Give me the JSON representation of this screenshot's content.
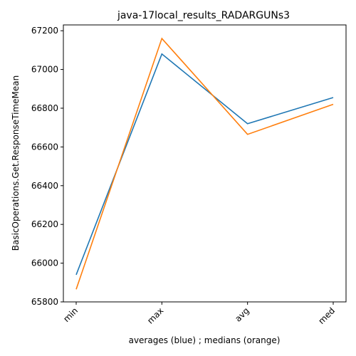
{
  "chart_data": {
    "type": "line",
    "title": "java-17local_results_RADARGUNs3",
    "xlabel": "averages (blue) ; medians (orange)",
    "ylabel": "BasicOperations.Get.ResponseTimeMean",
    "categories": [
      "min",
      "max",
      "avg",
      "med"
    ],
    "ylim": [
      65800,
      67230
    ],
    "yticks": [
      65800,
      66000,
      66200,
      66400,
      66600,
      66800,
      67000,
      67200
    ],
    "grid": false,
    "series": [
      {
        "name": "averages",
        "color": "#1f77b4",
        "values": [
          65940,
          67080,
          66720,
          66855
        ]
      },
      {
        "name": "medians",
        "color": "#ff7f0e",
        "values": [
          65865,
          67160,
          66665,
          66820
        ]
      }
    ]
  }
}
